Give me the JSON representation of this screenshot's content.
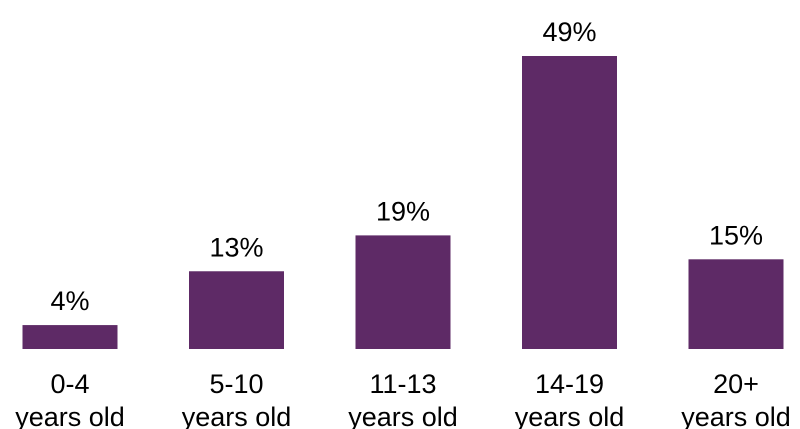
{
  "chart_data": {
    "type": "bar",
    "categories": [
      [
        "0-4",
        "years old"
      ],
      [
        "5-10",
        "years old"
      ],
      [
        "11-13",
        "years old"
      ],
      [
        "14-19",
        "years old"
      ],
      [
        "20+",
        "years old"
      ]
    ],
    "values": [
      4,
      13,
      19,
      49,
      15
    ],
    "value_labels": [
      "4%",
      "13%",
      "19%",
      "49%",
      "15%"
    ],
    "title": "",
    "xlabel": "",
    "ylabel": "",
    "ylim": [
      0,
      49
    ],
    "grid": false,
    "legend": "none",
    "bar_color": "#5E2A66"
  }
}
